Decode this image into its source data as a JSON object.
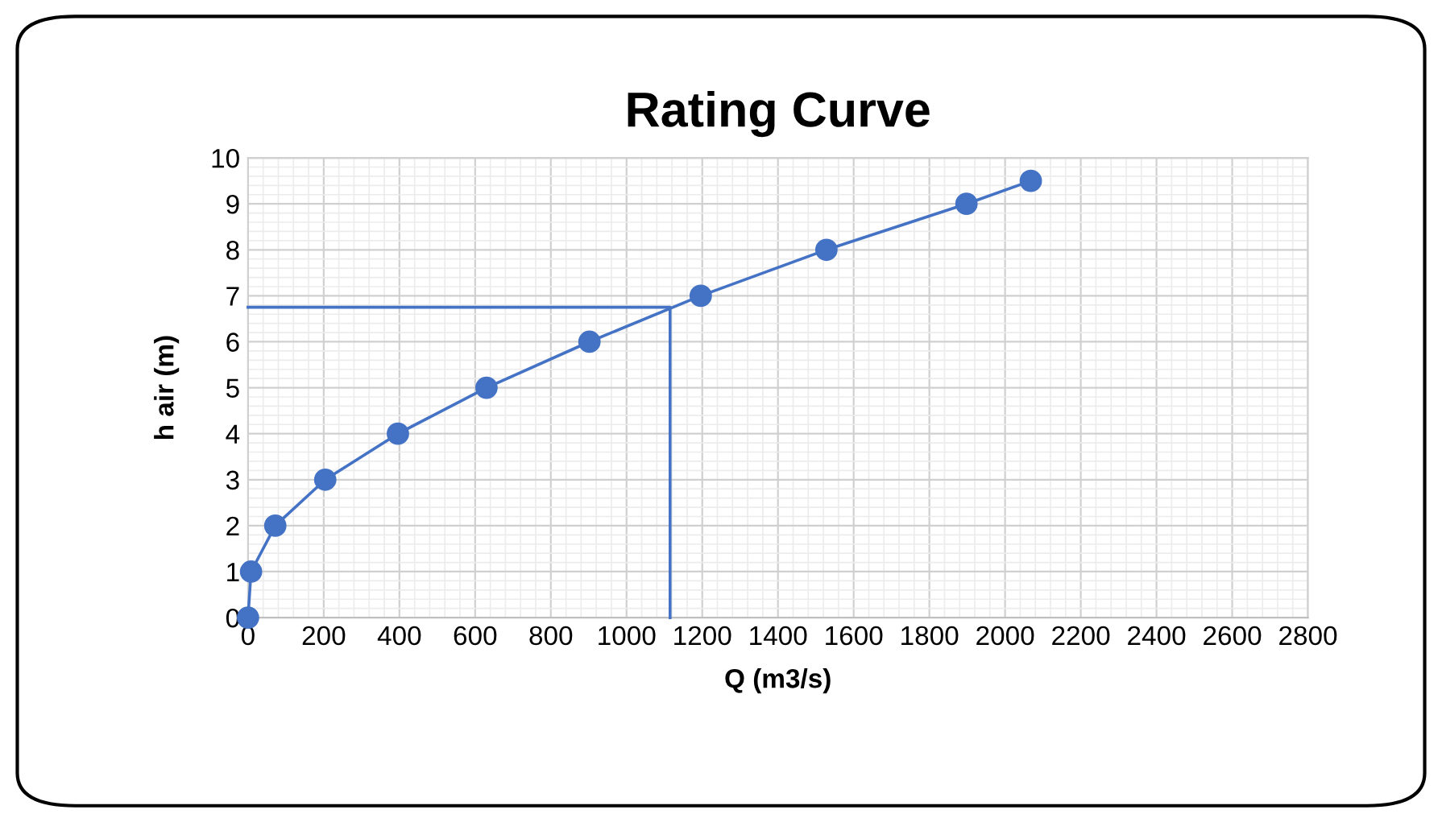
{
  "chart_data": {
    "type": "line",
    "title": "Rating Curve",
    "xlabel": "Q (m3/s)",
    "ylabel": "h air (m)",
    "xlim": [
      0,
      2800
    ],
    "xticks": [
      0,
      200,
      400,
      600,
      800,
      1000,
      1200,
      1400,
      1600,
      1800,
      2000,
      2200,
      2400,
      2600,
      2800
    ],
    "ylim": [
      0,
      10
    ],
    "yticks": [
      0,
      1,
      2,
      3,
      4,
      5,
      6,
      7,
      8,
      9,
      10
    ],
    "grid": true,
    "series": [
      {
        "color": "#4472c4",
        "marker": "circle",
        "x": [
          0,
          8,
          72,
          204,
          396,
          630,
          902,
          1196,
          1528,
          1898,
          2068
        ],
        "values": [
          0,
          1,
          2,
          3,
          4,
          5,
          6,
          7,
          8,
          9,
          9.5
        ]
      },
      {
        "color": "#4472c4",
        "marker": "none",
        "x": [
          0,
          1115,
          1115
        ],
        "values": [
          6.75,
          6.75,
          0
        ]
      }
    ]
  }
}
